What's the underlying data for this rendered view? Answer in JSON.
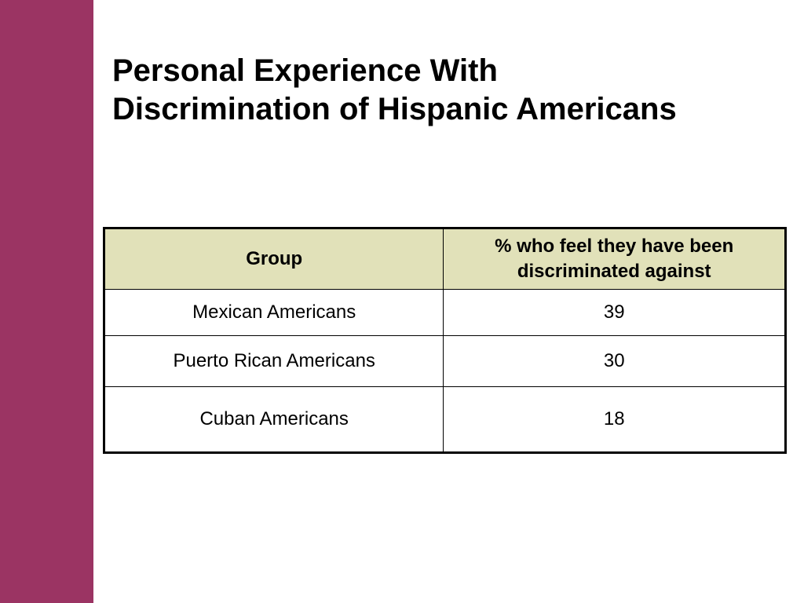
{
  "slide": {
    "title_line1": "Personal Experience With",
    "title_line2": "Discrimination of Hispanic Americans",
    "accent_color": "#9b3463",
    "header_fill": "#e1e1b9"
  },
  "table": {
    "headers": [
      "Group",
      "% who feel they have been discriminated against"
    ],
    "rows": [
      {
        "group": "Mexican Americans",
        "percent": "39"
      },
      {
        "group": "Puerto Rican Americans",
        "percent": "30"
      },
      {
        "group": "Cuban Americans",
        "percent": "18"
      }
    ]
  }
}
